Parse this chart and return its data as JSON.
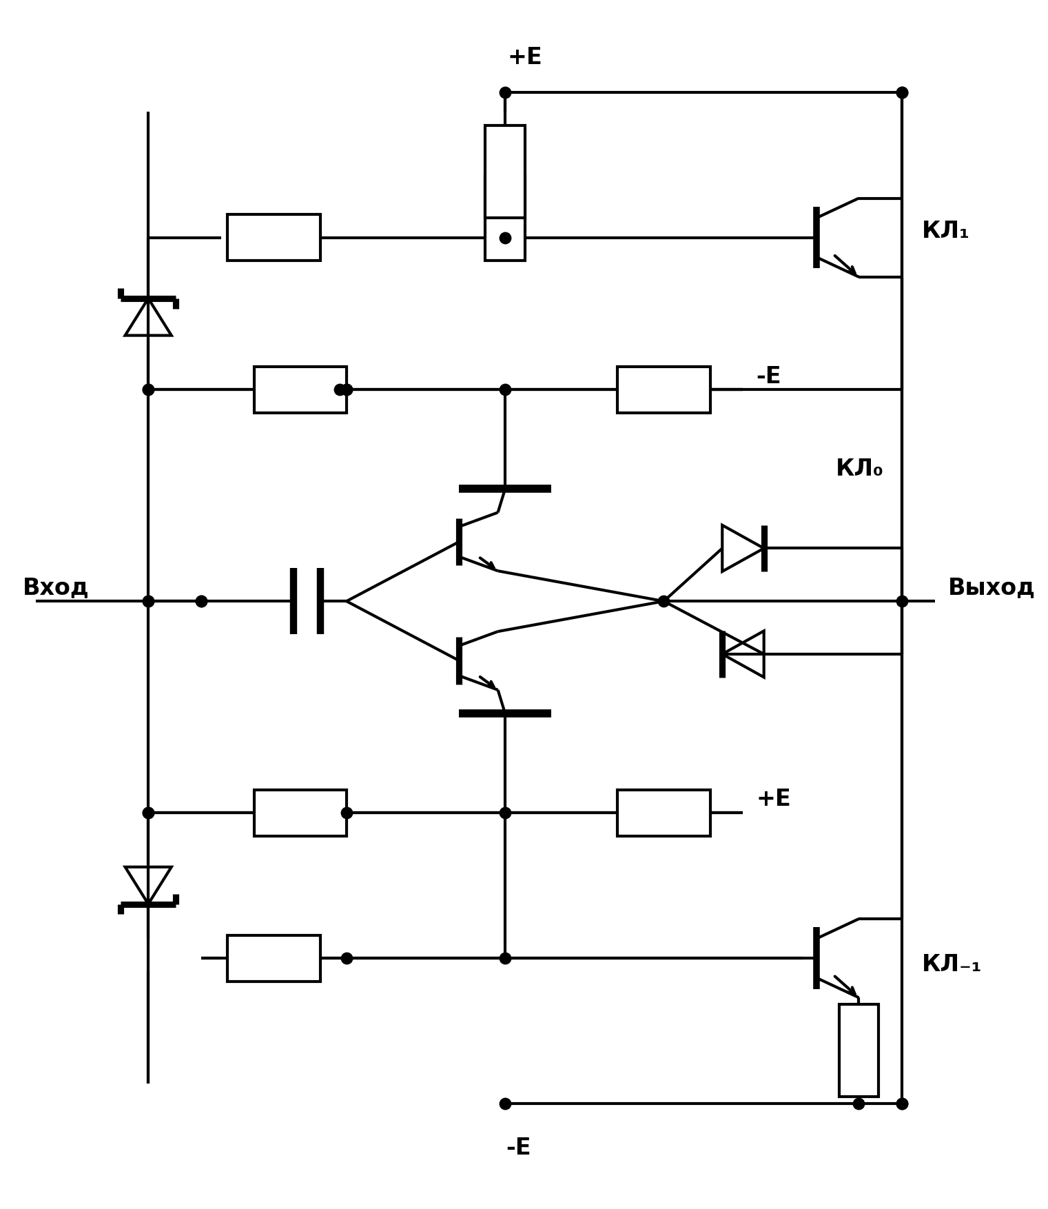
{
  "bg_color": "#ffffff",
  "line_color": "#000000",
  "lw": 3.0,
  "fig_width": 15.21,
  "fig_height": 17.54,
  "labels": {
    "plus_E_top": "+E",
    "minus_E_mid": "-E",
    "plus_E_bot": "+E",
    "minus_E_bot": "-E",
    "vhod": "Вход",
    "vyhod": "Выход",
    "KL1_top": "КЛ₁",
    "KL0": "КЛ₀",
    "KL1_bot": "КЛ₋₁"
  }
}
